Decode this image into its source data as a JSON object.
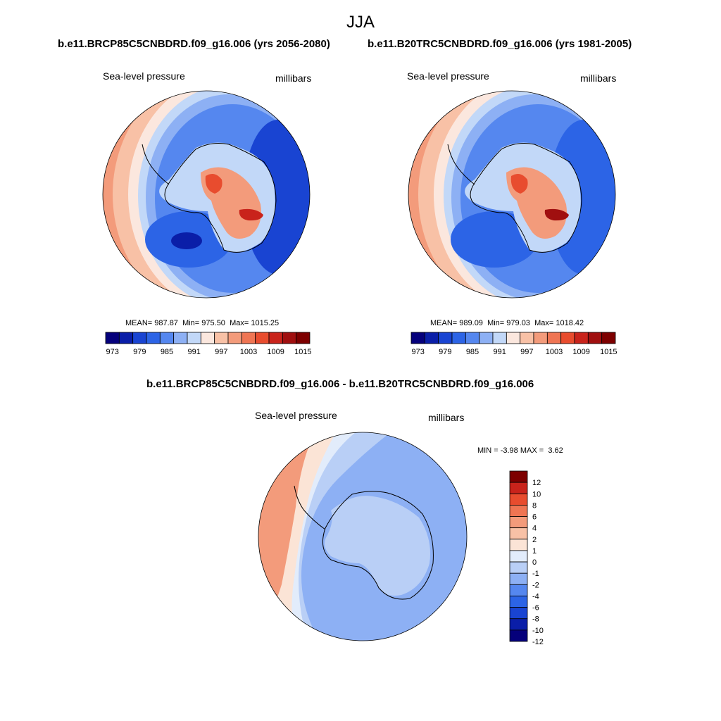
{
  "title": "JJA",
  "panels": [
    {
      "id": "future",
      "case_title": "b.e11.BRCP85C5CNBDRD.f09_g16.006 (yrs 2056-2080)",
      "variable": "Sea-level pressure",
      "units": "millibars",
      "stats": {
        "mean": "987.87",
        "min": "975.50",
        "max": "1015.25"
      }
    },
    {
      "id": "historical",
      "case_title": "b.e11.B20TRC5CNBDRD.f09_g16.006 (yrs 1981-2005)",
      "variable": "Sea-level pressure",
      "units": "millibars",
      "stats": {
        "mean": "989.09",
        "min": "979.03",
        "max": "1018.42"
      }
    },
    {
      "id": "difference",
      "case_title": "b.e11.BRCP85C5CNBDRD.f09_g16.006 - b.e11.B20TRC5CNBDRD.f09_g16.006",
      "variable": "Sea-level pressure",
      "units": "millibars",
      "stats": {
        "min": "-3.98",
        "max": "3.62"
      }
    }
  ],
  "labels": {
    "mean": "MEAN=",
    "min_field": "Min=",
    "max_field": "Max=",
    "min_diff": "MIN =",
    "max_diff": "MAX ="
  },
  "colorbar_abs": {
    "colors": [
      "#05007b",
      "#0a1ea8",
      "#1944d2",
      "#2c64e6",
      "#5587ef",
      "#8db0f4",
      "#c2d8f8",
      "#fbe7de",
      "#f8c1a6",
      "#f39b7b",
      "#ef7553",
      "#e84c2e",
      "#c9231b",
      "#a00f0f",
      "#7d0000"
    ],
    "ticks": [
      "973",
      "979",
      "985",
      "991",
      "997",
      "1003",
      "1009",
      "1015"
    ]
  },
  "colorbar_diff": {
    "colors": [
      "#05007b",
      "#0a1ea8",
      "#1944d2",
      "#2c64e6",
      "#5587ef",
      "#8db0f4",
      "#b9cff6",
      "#e2ecfb",
      "#fbe4d6",
      "#f8c1a6",
      "#f39b7b",
      "#ef7553",
      "#e84c2e",
      "#c9231b",
      "#7d0000"
    ],
    "ticks": [
      "12",
      "10",
      "8",
      "6",
      "4",
      "2",
      "1",
      "0",
      "-1",
      "-2",
      "-4",
      "-6",
      "-8",
      "-10",
      "-12"
    ]
  },
  "field_colors": {
    "ocean_deep": "#1944d2",
    "ocean_mid": "#2c64e6",
    "ocean_light": "#5587ef",
    "ocean_pale": "#8db0f4",
    "ice_white": "#c2d8f8",
    "warm1": "#f8c1a6",
    "warm2": "#f39b7b",
    "warm3": "#ef7553",
    "warm4": "#e84c2e",
    "warm5": "#c9231b",
    "diff_neg": "#8db0f4",
    "diff_neg_light": "#b9cff6",
    "diff_zero": "#e2ecfb",
    "diff_pos": "#fbe4d6",
    "diff_pos2": "#f8c1a6",
    "diff_pos3": "#f39b7b"
  }
}
